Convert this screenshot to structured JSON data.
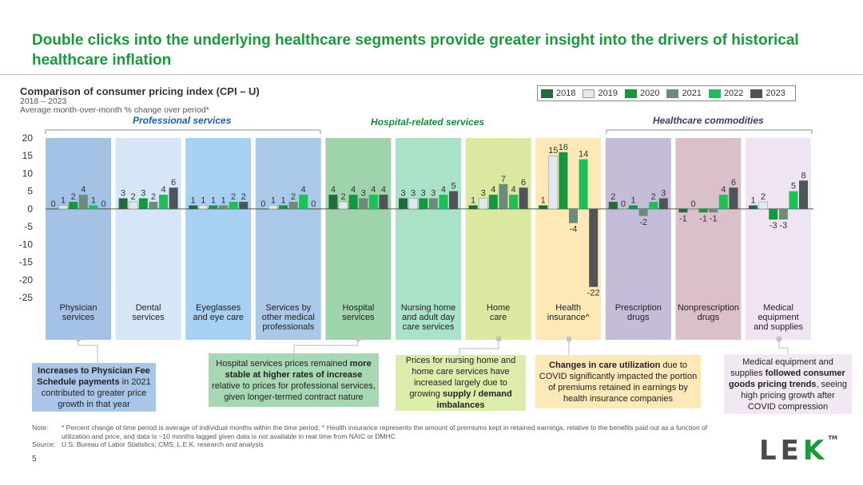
{
  "title": "Double clicks into the underlying healthcare segments provide greater insight into the drivers of historical healthcare inflation",
  "chart_title": "Comparison of consumer pricing index (CPI – U)",
  "chart_years": "2018 – 2023",
  "chart_subtitle": "Average month-over-month % change over period*",
  "groups": {
    "professional": "Professional services",
    "hospital": "Hospital-related services",
    "commodities": "Healthcare commodities"
  },
  "chart_data": {
    "type": "bar",
    "ylim": [
      -25,
      20
    ],
    "yticks": [
      "20",
      "15",
      "10",
      "5",
      "0",
      "-5",
      "-10",
      "-15",
      "-20",
      "-25"
    ],
    "categories": [
      {
        "name": "Physician\nservices",
        "values": [
          0,
          1,
          2,
          4,
          1,
          0
        ]
      },
      {
        "name": "Dental\nservices",
        "values": [
          3,
          2,
          3,
          2,
          4,
          6
        ]
      },
      {
        "name": "Eyeglasses\nand eye care",
        "values": [
          1,
          1,
          1,
          1,
          2,
          2
        ]
      },
      {
        "name": "Services by\nother medical\nprofessionals",
        "values": [
          0,
          1,
          1,
          2,
          4,
          0
        ]
      },
      {
        "name": "Hospital\nservices",
        "values": [
          4,
          2,
          4,
          3,
          4,
          4
        ]
      },
      {
        "name": "Nursing home\nand adult day\ncare services",
        "values": [
          3,
          3,
          3,
          3,
          4,
          5
        ]
      },
      {
        "name": "Home\ncare",
        "values": [
          1,
          3,
          4,
          7,
          4,
          6
        ]
      },
      {
        "name": "Health\ninsurance^",
        "values": [
          1,
          15,
          16,
          -4,
          14,
          -22
        ]
      },
      {
        "name": "Prescription\ndrugs",
        "values": [
          2,
          0,
          1,
          -2,
          2,
          3
        ]
      },
      {
        "name": "Nonprescription\ndrugs",
        "values": [
          -1,
          0,
          -1,
          -1,
          4,
          6
        ]
      },
      {
        "name": "Medical\nequipment\nand supplies",
        "values": [
          1,
          2,
          -3,
          -3,
          5,
          8
        ]
      }
    ],
    "series": [
      {
        "name": "2018",
        "color": "#1e6b3c"
      },
      {
        "name": "2019",
        "color": "#e2e8ef"
      },
      {
        "name": "2020",
        "color": "#16963e"
      },
      {
        "name": "2021",
        "color": "#6e8a78"
      },
      {
        "name": "2022",
        "color": "#1dbf58"
      },
      {
        "name": "2023",
        "color": "#4f5459"
      }
    ],
    "panel_colors": [
      "#a4c2e6",
      "#d7e6f7",
      "#a7d0f2",
      "#aac9e9",
      "#9fd3ac",
      "#a9e2c6",
      "#dbe9a0",
      "#fde8b6",
      "#c4bcd9",
      "#dbbfcb",
      "#efe4f2"
    ]
  },
  "callouts": [
    {
      "id": "physician",
      "html": "<b>Increases to Physician Fee Schedule payments</b> in 2021 contributed to greater price growth in that year",
      "bg": "#a9c6e8"
    },
    {
      "id": "hospital",
      "html": "Hospital services prices remained <b>more stable at higher rates of increase</b> relative to prices for professional services, given longer-termed contract nature",
      "bg": "#a7d8b3"
    },
    {
      "id": "home",
      "html": "Prices for nursing home and home care services have increased largely due to growing <b>supply / demand imbalances</b>",
      "bg": "#dcedaa"
    },
    {
      "id": "insurance",
      "html": "<b>Changes in care utilization</b> due to COVID significantly impacted the portion of premiums retained in earnings by health insurance companies",
      "bg": "#fde9b8"
    },
    {
      "id": "equipment",
      "html": "Medical equipment and supplies <b>followed consumer goods pricing trends</b>, seeing high pricing growth after COVID compression",
      "bg": "#f2e8f3"
    }
  ],
  "note_label": "Note:",
  "note_text": "* Percent change of time period is average of individual months within the time period; ^ Health insurance represents the amount of premiums kept in retained earnings, relative to the benefits paid out as a function of utilization and price, and data is ~10 months lagged given data is not available in real time from NAIC or DMHC",
  "source_label": "Source:",
  "source_text": "U.S. Bureau of Labor Statistics; CMS; L.E.K. research and analysis",
  "page_number": "5",
  "logo": {
    "l": "L",
    "e": "E",
    "k": "K",
    "tm": "TM"
  }
}
